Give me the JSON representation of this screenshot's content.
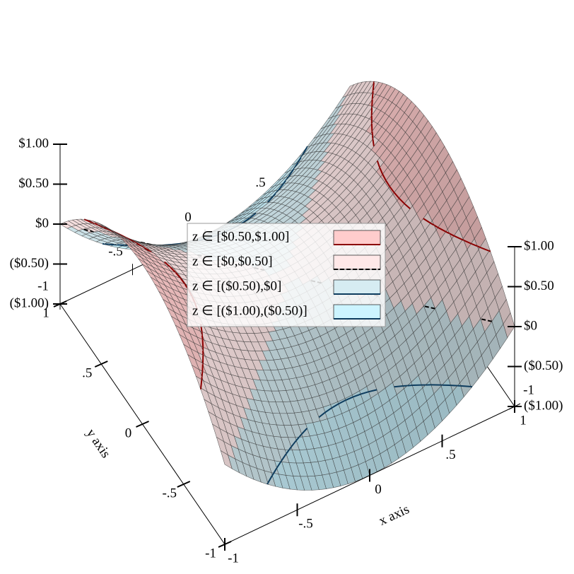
{
  "chart_data": {
    "type": "surface3d",
    "x_label": "x axis",
    "y_label": "y axis",
    "xlim": [
      -1,
      1
    ],
    "ylim": [
      -1,
      1
    ],
    "zlim": [
      -1,
      1
    ],
    "xticks": [
      -1,
      {
        "value": -0.5,
        "label": "-.5"
      },
      0,
      {
        "value": 0.5,
        "label": ".5"
      },
      1
    ],
    "yticks": [
      -1,
      {
        "value": -0.5,
        "label": "-.5"
      },
      0,
      {
        "value": 0.5,
        "label": ".5"
      },
      1
    ],
    "zticks": [
      {
        "value": -1,
        "label": "($1.00)"
      },
      {
        "value": -0.5,
        "label": "($0.50)"
      },
      {
        "value": 0,
        "label": "$0"
      },
      {
        "value": 0.5,
        "label": "$0.50"
      },
      {
        "value": 1,
        "label": "$1.00"
      }
    ],
    "series": [
      {
        "name": "z ∈ [$0.50,$1.00]",
        "color": "#ffcccc",
        "line_color": "#8b0000",
        "dashed": false
      },
      {
        "name": "z ∈ [$0,$0.50]",
        "color": "#ffe8e8",
        "line_color": "#000000",
        "dashed": true
      },
      {
        "name": "z ∈ [($0.50),$0]",
        "color": "#d6ecf2",
        "line_color": "#0d3c5e",
        "dashed": false
      },
      {
        "name": "z ∈ [($1.00),($0.50)]",
        "color": "#ccf4ff",
        "line_color": "#0d3c5e",
        "dashed": false
      }
    ]
  }
}
